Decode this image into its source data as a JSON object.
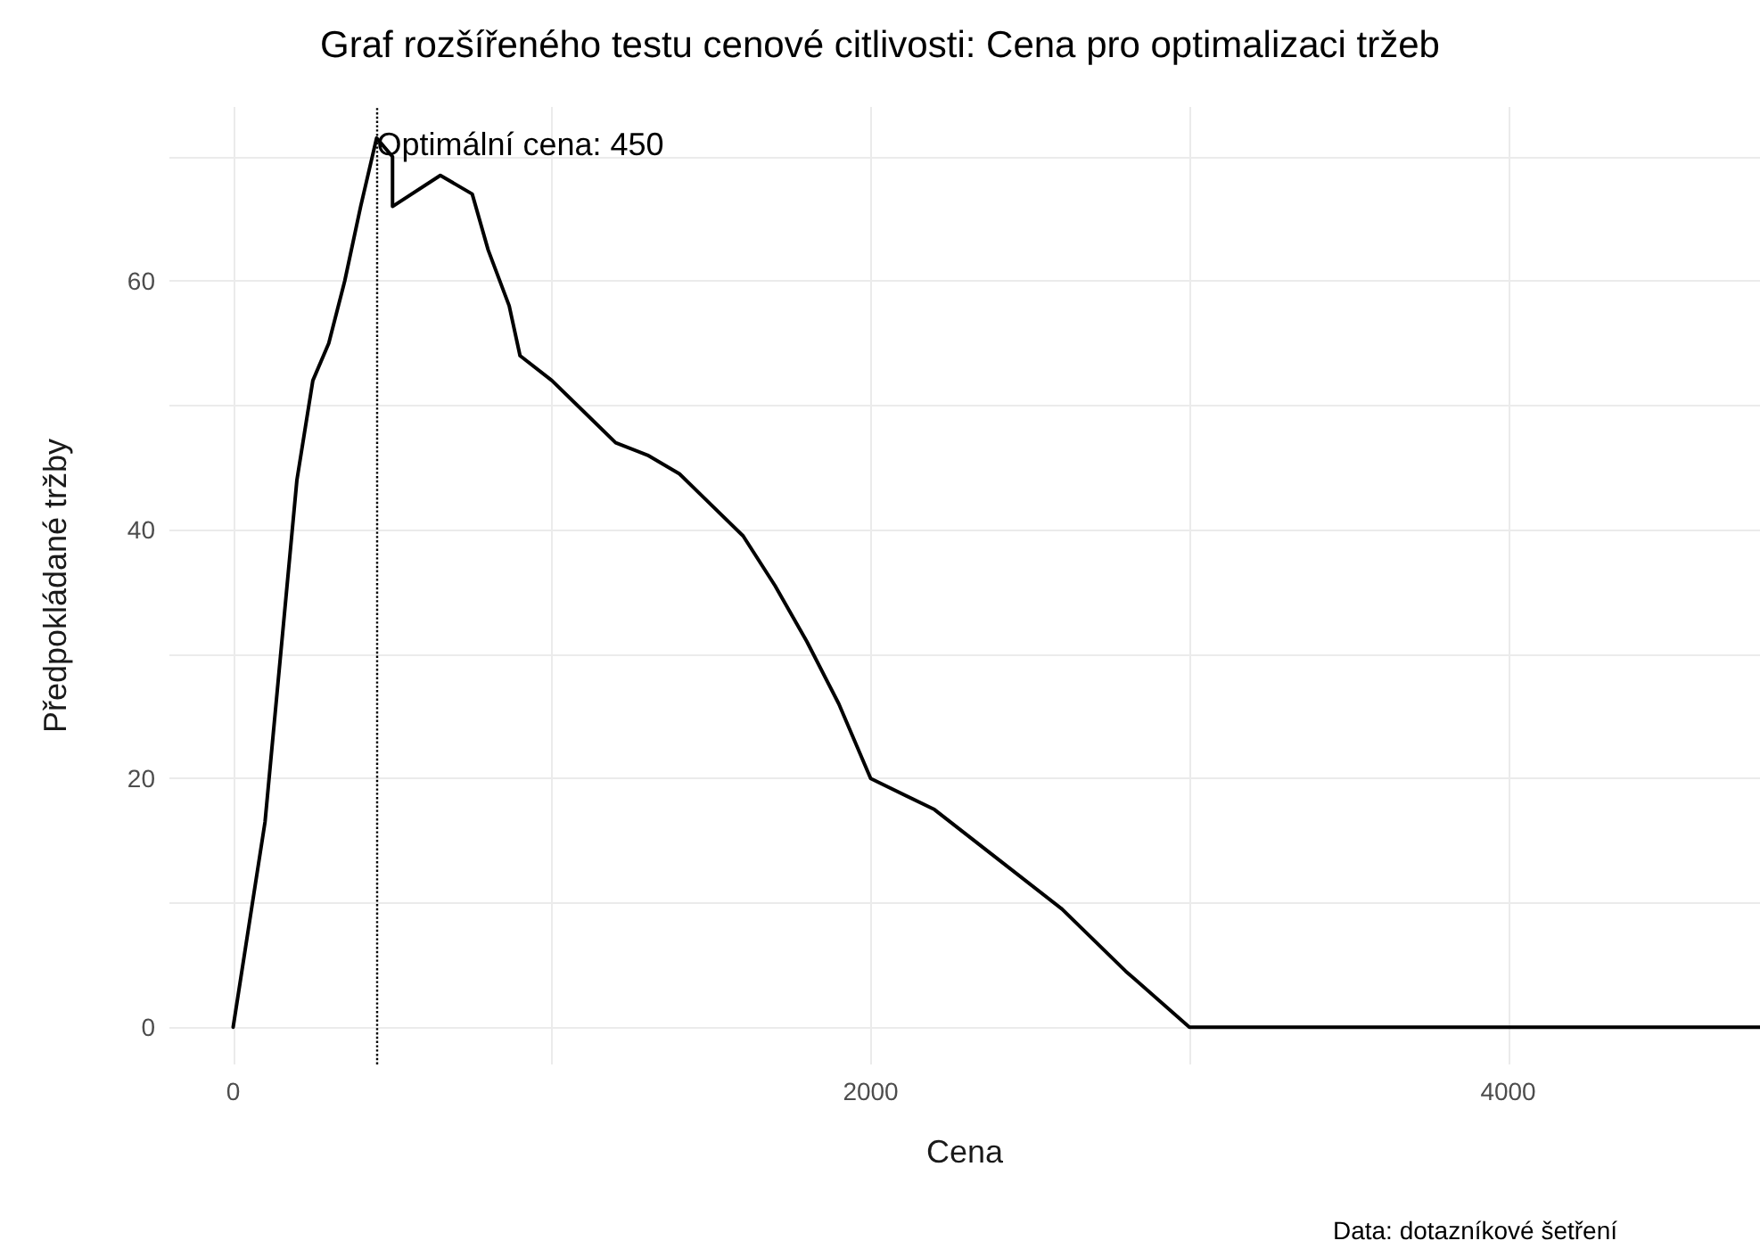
{
  "chart_data": {
    "type": "line",
    "title": "Graf rozšířeného testu cenové citlivosti: Cena pro optimalizaci tržeb",
    "xlabel": "Cena",
    "ylabel": "Předpokládané tržby",
    "x": [
      0,
      100,
      200,
      250,
      300,
      350,
      400,
      450,
      500,
      500,
      650,
      750,
      800,
      866,
      900,
      1000,
      1100,
      1200,
      1300,
      1400,
      1500,
      1600,
      1700,
      1800,
      1900,
      2000,
      2200,
      2400,
      2600,
      2800,
      3000,
      4790
    ],
    "series": [
      {
        "color": "#000000",
        "values": [
          0,
          16.5,
          44,
          52,
          55,
          60,
          66,
          71.5,
          70,
          66,
          68.5,
          67,
          62.5,
          58,
          54,
          52,
          49.5,
          47,
          46,
          44.5,
          42,
          39.5,
          35.5,
          31,
          26,
          20,
          17.5,
          13.5,
          9.5,
          4.5,
          0,
          0
        ]
      }
    ],
    "xlim": [
      -200,
      4790
    ],
    "xticks": [
      0,
      {
        "value": 1000,
        "label": null
      },
      2000,
      {
        "value": 3000,
        "label": null
      },
      4000
    ],
    "ylim": [
      -3,
      74
    ],
    "yticks": [
      0,
      {
        "value": 10,
        "label": null
      },
      20,
      {
        "value": 30,
        "label": null
      },
      40,
      {
        "value": 50,
        "label": null
      },
      60,
      {
        "value": 70,
        "label": null
      }
    ],
    "grid": true,
    "marker": "none",
    "line_style": "solid",
    "ref_lines": [
      {
        "axis": "x",
        "value": 450,
        "line_style": "dotted",
        "color": "#000000"
      }
    ],
    "annotations": [
      {
        "text": "Optimální cena: 450",
        "x": 450,
        "y": 71
      },
      "Data: dotazníkové šetření"
    ]
  }
}
